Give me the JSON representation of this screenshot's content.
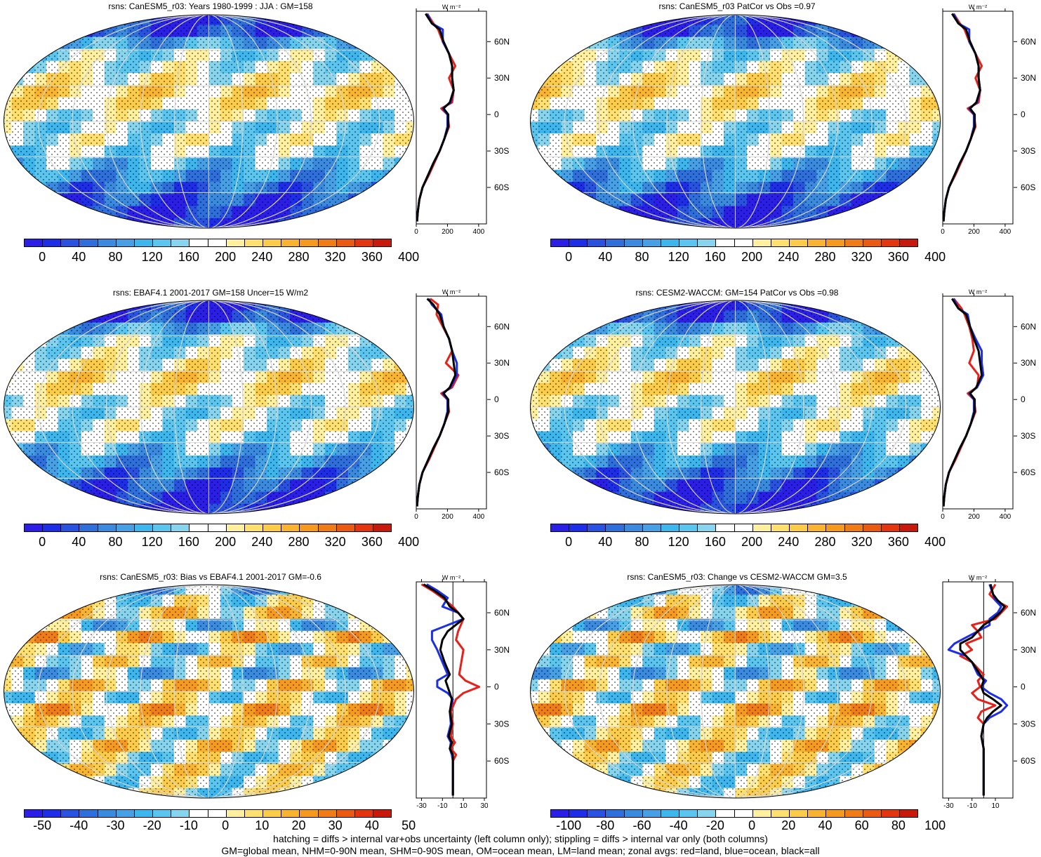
{
  "footnote": {
    "line1": "hatching = diffs > internal var+obs uncertainty (left column only); stippling = diffs > internal var only (both columns)",
    "line2": "GM=global mean, NHM=0-90N mean, SHM=0-90S mean, OM=ocean mean, LM=land mean; zonal avgs: red=land, blue=ocean, black=all"
  },
  "colors": {
    "abs_scale": [
      "#2b1ee6",
      "#1e2de8",
      "#2952e0",
      "#2e6fdc",
      "#3a8ae0",
      "#47a0e6",
      "#3cb6ec",
      "#5ac6f0",
      "#86d4ee",
      "#ffffff",
      "#ffffff",
      "#fff0a0",
      "#fde070",
      "#fbcb4a",
      "#f8b431",
      "#f59a1f",
      "#f07c17",
      "#ea5a12",
      "#e3350f",
      "#c81a0c"
    ],
    "diff_scale": [
      "#2b1ee6",
      "#1e2de8",
      "#2952e0",
      "#2e6fdc",
      "#3a8ae0",
      "#47a0e6",
      "#3cb6ec",
      "#5ac6f0",
      "#86d4ee",
      "#ffffff",
      "#ffffff",
      "#fff0a0",
      "#fde070",
      "#fbcb4a",
      "#f8b431",
      "#f59a1f",
      "#f07c17",
      "#ea5a12",
      "#e3350f",
      "#c81a0c"
    ],
    "zonal_land": "#e8201a",
    "zonal_ocean": "#1c2ee8",
    "zonal_all": "#000000"
  },
  "chart_data": [
    {
      "type": "heatmap",
      "title": "rsns: CanESM5_r03: Years 1980-1999 : JJA : GM=158",
      "colorbar_ticks": [
        "0",
        "40",
        "80",
        "120",
        "160",
        "200",
        "240",
        "280",
        "320",
        "360",
        "400"
      ],
      "zonal": {
        "unit": "W m⁻²",
        "xticks": [
          "0",
          "200",
          "400"
        ],
        "xlim": [
          0,
          450
        ],
        "yticks": [
          "60N",
          "30N",
          "0",
          "30S",
          "60S"
        ],
        "ylim": [
          -90,
          85
        ],
        "lat": [
          83,
          75,
          70,
          60,
          50,
          40,
          30,
          20,
          10,
          5,
          0,
          -10,
          -20,
          -30,
          -40,
          -50,
          -60,
          -70,
          -80,
          -88
        ],
        "land": [
          70,
          110,
          140,
          170,
          210,
          250,
          210,
          240,
          230,
          160,
          200,
          210,
          180,
          150,
          115,
          80,
          40,
          20,
          10,
          5
        ],
        "ocean": [
          70,
          100,
          170,
          170,
          210,
          230,
          230,
          240,
          220,
          170,
          200,
          200,
          180,
          150,
          110,
          75,
          40,
          20,
          10,
          5
        ],
        "all": [
          60,
          100,
          150,
          175,
          210,
          230,
          230,
          240,
          215,
          175,
          205,
          205,
          180,
          150,
          110,
          75,
          40,
          20,
          10,
          5
        ]
      }
    },
    {
      "type": "heatmap",
      "title": "rsns: CanESM5_r03 PatCor vs Obs =0.97",
      "colorbar_ticks": [
        "0",
        "40",
        "80",
        "120",
        "160",
        "200",
        "240",
        "280",
        "320",
        "360",
        "400"
      ],
      "zonal": {
        "unit": "W m⁻²",
        "xticks": [
          "0",
          "200",
          "400"
        ],
        "xlim": [
          0,
          450
        ],
        "yticks": [
          "60N",
          "30N",
          "0",
          "30S",
          "60S"
        ],
        "ylim": [
          -90,
          85
        ],
        "lat": [
          83,
          75,
          70,
          60,
          50,
          40,
          30,
          20,
          10,
          5,
          0,
          -10,
          -20,
          -30,
          -40,
          -50,
          -60,
          -70,
          -80,
          -88
        ],
        "land": [
          70,
          110,
          140,
          170,
          210,
          250,
          210,
          240,
          230,
          160,
          200,
          210,
          180,
          150,
          115,
          80,
          40,
          20,
          10,
          5
        ],
        "ocean": [
          70,
          100,
          170,
          170,
          210,
          230,
          230,
          240,
          220,
          170,
          200,
          200,
          180,
          150,
          110,
          75,
          40,
          20,
          10,
          5
        ],
        "all": [
          60,
          100,
          150,
          175,
          210,
          230,
          230,
          240,
          215,
          175,
          205,
          205,
          180,
          150,
          110,
          75,
          40,
          20,
          10,
          5
        ]
      }
    },
    {
      "type": "heatmap",
      "title": "rsns: EBAF4.1 2001-2017 GM=158 Uncer=15 W/m2",
      "colorbar_ticks": [
        "0",
        "40",
        "80",
        "120",
        "160",
        "200",
        "240",
        "280",
        "320",
        "360",
        "400"
      ],
      "zonal": {
        "unit": "W m⁻²",
        "xticks": [
          "0",
          "200",
          "400"
        ],
        "xlim": [
          0,
          450
        ],
        "yticks": [
          "60N",
          "30N",
          "0",
          "30S",
          "60S"
        ],
        "ylim": [
          -90,
          85
        ],
        "lat": [
          83,
          78,
          70,
          60,
          50,
          40,
          30,
          20,
          10,
          5,
          0,
          -10,
          -20,
          -30,
          -40,
          -50,
          -60,
          -70,
          -80,
          -88
        ],
        "land": [
          90,
          140,
          130,
          170,
          210,
          230,
          190,
          270,
          230,
          160,
          200,
          210,
          180,
          150,
          115,
          80,
          40,
          20,
          10,
          5
        ],
        "ocean": [
          80,
          100,
          160,
          175,
          210,
          230,
          260,
          260,
          220,
          170,
          200,
          200,
          180,
          150,
          110,
          75,
          40,
          20,
          10,
          5
        ],
        "all": [
          70,
          110,
          150,
          175,
          210,
          230,
          240,
          250,
          215,
          175,
          205,
          205,
          180,
          150,
          110,
          75,
          40,
          20,
          10,
          5
        ]
      }
    },
    {
      "type": "heatmap",
      "title": "rsns: CESM2-WACCM: GM=154 PatCor vs Obs =0.98",
      "colorbar_ticks": [
        "0",
        "40",
        "80",
        "120",
        "160",
        "200",
        "240",
        "280",
        "320",
        "360",
        "400"
      ],
      "zonal": {
        "unit": "W m⁻²",
        "xticks": [
          "0",
          "200",
          "400"
        ],
        "xlim": [
          0,
          450
        ],
        "yticks": [
          "60N",
          "30N",
          "0",
          "30S",
          "60S"
        ],
        "ylim": [
          -90,
          85
        ],
        "lat": [
          83,
          75,
          70,
          60,
          50,
          40,
          30,
          20,
          10,
          5,
          0,
          -10,
          -20,
          -30,
          -40,
          -50,
          -60,
          -70,
          -80,
          -88
        ],
        "land": [
          70,
          120,
          140,
          170,
          190,
          200,
          170,
          230,
          220,
          160,
          200,
          210,
          180,
          150,
          115,
          80,
          40,
          20,
          10,
          5
        ],
        "ocean": [
          70,
          100,
          160,
          175,
          210,
          250,
          250,
          260,
          220,
          170,
          200,
          200,
          180,
          150,
          110,
          75,
          40,
          20,
          10,
          5
        ],
        "all": [
          60,
          100,
          150,
          175,
          200,
          230,
          240,
          250,
          215,
          175,
          205,
          205,
          180,
          150,
          110,
          75,
          40,
          20,
          10,
          5
        ]
      }
    },
    {
      "type": "heatmap",
      "title": "rsns: CanESM5_r03: Bias vs EBAF4.1 2001-2017 GM=-0.6",
      "colorbar_ticks": [
        "-50",
        "-40",
        "-30",
        "-20",
        "-10",
        "0",
        "10",
        "20",
        "30",
        "40",
        "50"
      ],
      "zonal": {
        "unit": "W m⁻²",
        "xticks": [
          "-30",
          "-10",
          "10",
          "30"
        ],
        "xlim": [
          -35,
          32
        ],
        "yticks": [
          "60N",
          "30N",
          "0",
          "30S",
          "60S"
        ],
        "ylim": [
          -90,
          85
        ],
        "lat": [
          83,
          78,
          72,
          65,
          60,
          55,
          45,
          38,
          30,
          20,
          10,
          5,
          0,
          -5,
          -10,
          -20,
          -30,
          -40,
          -45,
          -50,
          -55,
          -60,
          -70,
          -80,
          -88
        ],
        "land": [
          -30,
          -20,
          -10,
          0,
          5,
          10,
          5,
          3,
          10,
          8,
          6,
          12,
          25,
          10,
          3,
          -2,
          0,
          -2,
          2,
          -2,
          3,
          0,
          0,
          0,
          0
        ],
        "ocean": [
          -25,
          -15,
          -5,
          -10,
          5,
          10,
          -20,
          -20,
          -15,
          -10,
          -5,
          -15,
          -15,
          -5,
          0,
          -3,
          -2,
          -5,
          -2,
          -3,
          -1,
          0,
          0,
          0,
          0
        ],
        "all": [
          -28,
          -18,
          -8,
          -3,
          5,
          10,
          -5,
          -10,
          -12,
          -8,
          -3,
          -7,
          -5,
          -3,
          -1,
          -3,
          -1,
          -4,
          -1,
          -3,
          0,
          0,
          0,
          0,
          0
        ]
      }
    },
    {
      "type": "heatmap",
      "title": "rsns: CanESM5_r03: Change vs CESM2-WACCM GM=3.5",
      "colorbar_ticks": [
        "-100",
        "-80",
        "-60",
        "-40",
        "-20",
        "0",
        "20",
        "40",
        "60",
        "80",
        "100"
      ],
      "zonal": {
        "unit": "W m⁻²",
        "xticks": [
          "-30",
          "-10",
          "10"
        ],
        "xlim": [
          -35,
          25
        ],
        "yticks": [
          "60N",
          "30N",
          "0",
          "30S",
          "60S"
        ],
        "ylim": [
          -90,
          85
        ],
        "lat": [
          83,
          75,
          70,
          65,
          60,
          55,
          50,
          45,
          40,
          35,
          30,
          25,
          20,
          10,
          5,
          0,
          -5,
          -10,
          -15,
          -20,
          -25,
          -30,
          -40,
          -50,
          -60,
          -70,
          -80,
          -88
        ],
        "land": [
          10,
          5,
          10,
          20,
          15,
          10,
          -10,
          -5,
          -2,
          -15,
          -10,
          -20,
          -10,
          0,
          -5,
          -3,
          -10,
          -5,
          10,
          -2,
          -5,
          0,
          -2,
          0,
          0,
          0,
          0,
          0
        ],
        "ocean": [
          5,
          8,
          10,
          15,
          12,
          5,
          5,
          -5,
          -15,
          -25,
          -30,
          -15,
          -10,
          -5,
          2,
          -2,
          5,
          15,
          20,
          15,
          5,
          0,
          -2,
          0,
          0,
          0,
          0,
          0
        ],
        "all": [
          6,
          8,
          12,
          18,
          14,
          8,
          0,
          -5,
          -10,
          -20,
          -20,
          -15,
          -10,
          -3,
          0,
          -2,
          0,
          8,
          15,
          8,
          3,
          0,
          -2,
          0,
          0,
          0,
          0,
          0
        ]
      }
    }
  ]
}
